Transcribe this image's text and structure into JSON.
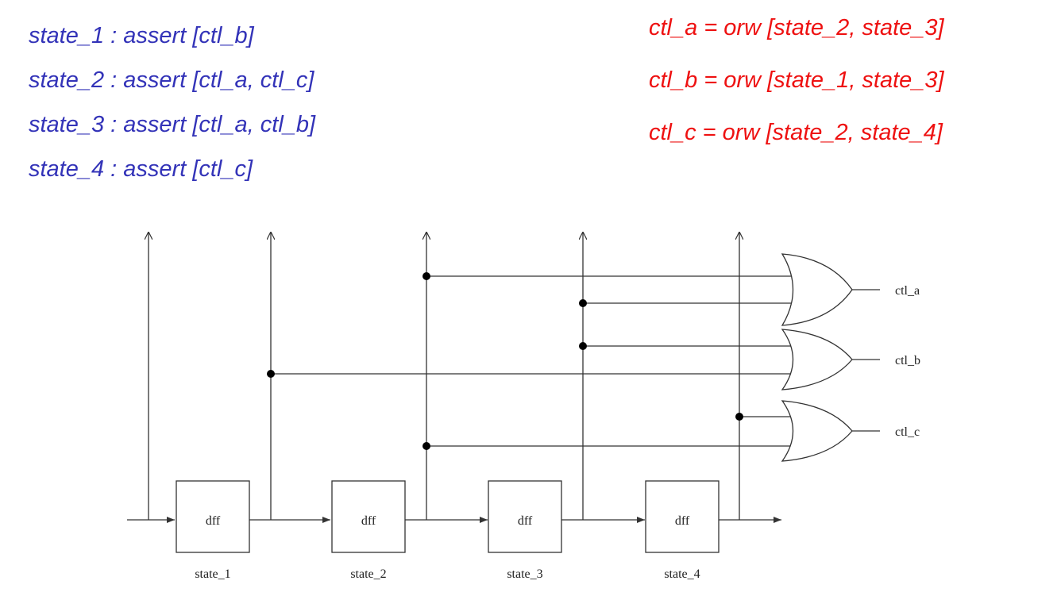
{
  "equations": {
    "assertions": [
      "state_1 : assert [ctl_b]",
      "state_2 : assert [ctl_a, ctl_c]",
      "state_3 : assert [ctl_a, ctl_b]",
      "state_4 : assert [ctl_c]"
    ],
    "or_definitions": [
      "ctl_a = orw [state_2, state_3]",
      "ctl_b = orw [state_1, state_3]",
      "ctl_c = orw [state_2, state_4]"
    ]
  },
  "colors": {
    "assertions": "#3333b8",
    "or_definitions": "#ee1111",
    "wire": "#333333"
  },
  "circuit": {
    "flip_flops": [
      {
        "label": "dff",
        "state": "state_1"
      },
      {
        "label": "dff",
        "state": "state_2"
      },
      {
        "label": "dff",
        "state": "state_3"
      },
      {
        "label": "dff",
        "state": "state_4"
      }
    ],
    "or_gates": [
      {
        "output": "ctl_a",
        "inputs": [
          "state_2",
          "state_3"
        ]
      },
      {
        "output": "ctl_b",
        "inputs": [
          "state_3",
          "state_1"
        ]
      },
      {
        "output": "ctl_c",
        "inputs": [
          "state_4",
          "state_2"
        ]
      }
    ]
  }
}
